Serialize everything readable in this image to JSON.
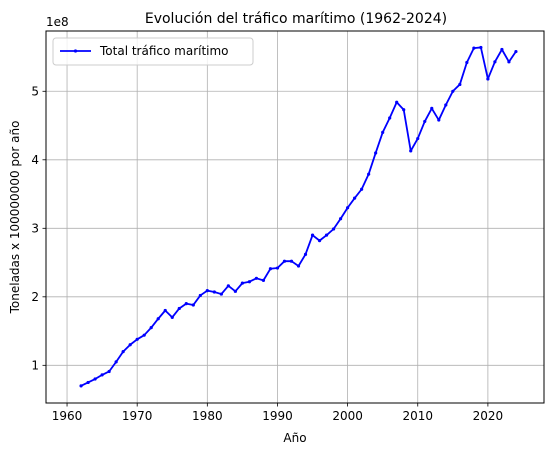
{
  "chart_data": {
    "type": "line",
    "title": "Evolución del tráfico marítimo (1962-2024)",
    "xlabel": "Año",
    "ylabel": "Toneladas x 100000000 por año",
    "y_offset_label": "1e8",
    "xlim": [
      1957,
      2028
    ],
    "ylim": [
      45000000,
      588000000
    ],
    "x_ticks": [
      1960,
      1970,
      1980,
      1990,
      2000,
      2010,
      2020
    ],
    "y_ticks": [
      100000000,
      200000000,
      300000000,
      400000000,
      500000000
    ],
    "y_tick_labels": [
      "1",
      "2",
      "3",
      "4",
      "5"
    ],
    "grid": true,
    "legend_position": "upper-left",
    "series": [
      {
        "name": "Total tráfico marítimo",
        "color": "#0000ff",
        "marker": "point",
        "x": [
          1962,
          1963,
          1964,
          1965,
          1966,
          1967,
          1968,
          1969,
          1970,
          1971,
          1972,
          1973,
          1974,
          1975,
          1976,
          1977,
          1978,
          1979,
          1980,
          1981,
          1982,
          1983,
          1984,
          1985,
          1986,
          1987,
          1988,
          1989,
          1990,
          1991,
          1992,
          1993,
          1994,
          1995,
          1996,
          1997,
          1998,
          1999,
          2000,
          2001,
          2002,
          2003,
          2004,
          2005,
          2006,
          2007,
          2008,
          2009,
          2010,
          2011,
          2012,
          2013,
          2014,
          2015,
          2016,
          2017,
          2018,
          2019,
          2020,
          2021,
          2022,
          2023,
          2024
        ],
        "values": [
          70000000,
          75000000,
          80000000,
          86000000,
          91000000,
          105000000,
          120000000,
          130000000,
          138000000,
          144000000,
          155000000,
          168000000,
          180000000,
          170000000,
          183000000,
          190000000,
          188000000,
          202000000,
          209000000,
          207000000,
          204000000,
          216000000,
          208000000,
          220000000,
          222000000,
          227000000,
          224000000,
          241000000,
          242000000,
          252000000,
          252000000,
          245000000,
          262000000,
          290000000,
          282000000,
          290000000,
          299000000,
          314000000,
          330000000,
          344000000,
          357000000,
          379000000,
          410000000,
          440000000,
          461000000,
          484000000,
          473000000,
          413000000,
          431000000,
          456000000,
          475000000,
          458000000,
          480000000,
          500000000,
          510000000,
          542000000,
          563000000,
          564000000,
          518000000,
          543000000,
          561000000,
          543000000,
          558000000
        ]
      }
    ]
  }
}
